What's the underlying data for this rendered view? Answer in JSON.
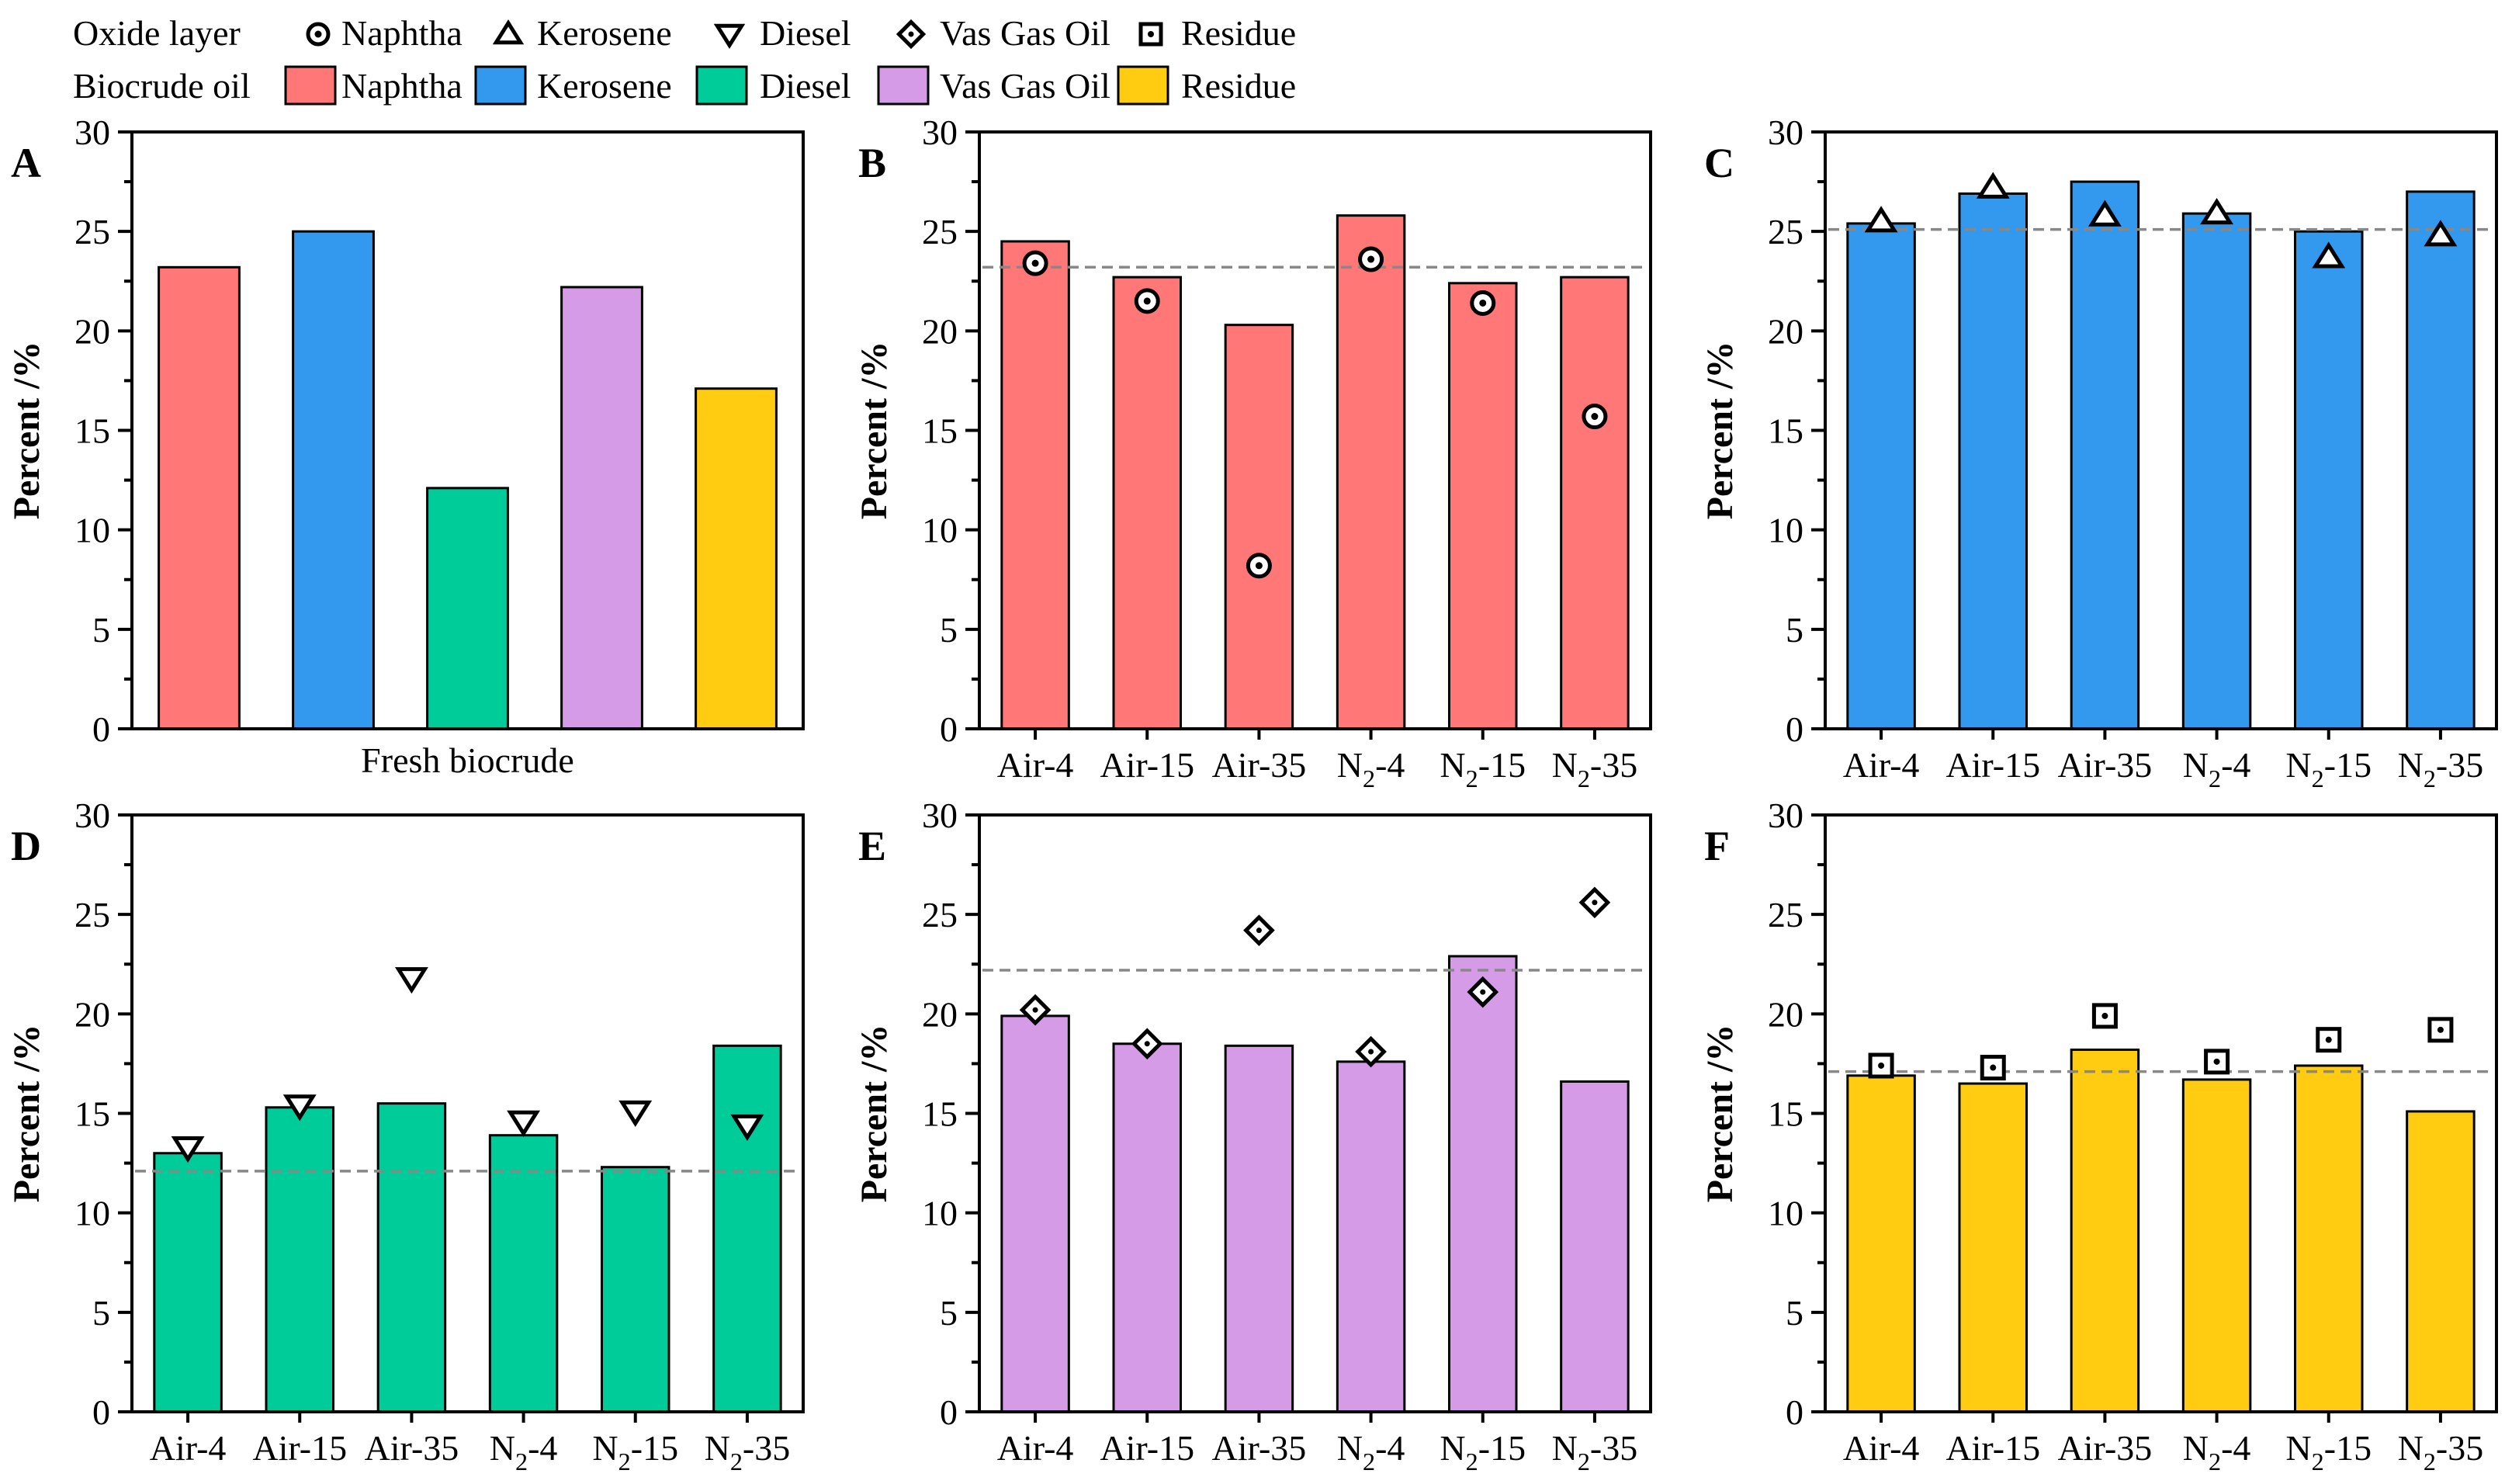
{
  "legend": {
    "row1_label": "Oxide layer",
    "row2_label": "Biocrude oil",
    "items": [
      {
        "name": "Naphtha",
        "marker": "circle-dot",
        "color": "#FF7777"
      },
      {
        "name": "Kerosene",
        "marker": "triangle-up",
        "color": "#3399EE"
      },
      {
        "name": "Diesel",
        "marker": "triangle-down",
        "color": "#00CC99"
      },
      {
        "name": "Vas Gas Oil",
        "marker": "diamond",
        "color": "#D59BE6"
      },
      {
        "name": "Residue",
        "marker": "square-dot",
        "color": "#FFCC11"
      }
    ]
  },
  "chart_data": [
    {
      "panel": "A",
      "type": "bar",
      "ylabel": "Percent /%",
      "xlabel": "Fresh biocrude",
      "ylim": [
        0,
        30
      ],
      "yticks": [
        "0",
        "5",
        "10",
        "15",
        "20",
        "25",
        "30"
      ],
      "categories": [
        "Naphtha",
        "Kerosene",
        "Diesel",
        "Vas Gas Oil",
        "Residue"
      ],
      "values": [
        23.2,
        25.0,
        12.1,
        22.2,
        17.1
      ],
      "colors": [
        "#FF7777",
        "#3399EE",
        "#00CC99",
        "#D59BE6",
        "#FFCC11"
      ]
    },
    {
      "panel": "B",
      "type": "bar",
      "ylabel": "Percent /%",
      "series_name": "Naphtha",
      "ylim": [
        0,
        30
      ],
      "yticks": [
        "0",
        "5",
        "10",
        "15",
        "20",
        "25",
        "30"
      ],
      "categories": [
        "Air-4",
        "Air-15",
        "Air-35",
        "N2-4",
        "N2-15",
        "N2-35"
      ],
      "values": [
        24.5,
        22.7,
        20.3,
        25.8,
        22.4,
        22.7
      ],
      "marker_values": [
        23.4,
        21.5,
        8.2,
        23.6,
        21.4,
        15.7
      ],
      "reference_line": 23.2,
      "marker": "circle-dot",
      "color": "#FF7777"
    },
    {
      "panel": "C",
      "type": "bar",
      "ylabel": "Percent /%",
      "series_name": "Kerosene",
      "ylim": [
        0,
        30
      ],
      "yticks": [
        "0",
        "5",
        "10",
        "15",
        "20",
        "25",
        "30"
      ],
      "categories": [
        "Air-4",
        "Air-15",
        "Air-35",
        "N2-4",
        "N2-15",
        "N2-35"
      ],
      "values": [
        25.4,
        26.9,
        27.5,
        25.9,
        25.0,
        27.0
      ],
      "marker_values": [
        25.5,
        27.2,
        25.8,
        25.9,
        23.7,
        24.8
      ],
      "reference_line": 25.1,
      "marker": "triangle-up",
      "color": "#3399EE"
    },
    {
      "panel": "D",
      "type": "bar",
      "ylabel": "Percent /%",
      "series_name": "Diesel",
      "ylim": [
        0,
        30
      ],
      "yticks": [
        "0",
        "5",
        "10",
        "15",
        "20",
        "25",
        "30"
      ],
      "categories": [
        "Air-4",
        "Air-15",
        "Air-35",
        "N2-4",
        "N2-15",
        "N2-35"
      ],
      "values": [
        13.0,
        15.3,
        15.5,
        13.9,
        12.3,
        18.4
      ],
      "marker_values": [
        13.3,
        15.4,
        21.8,
        14.6,
        15.1,
        14.4
      ],
      "reference_line": 12.1,
      "marker": "triangle-down",
      "color": "#00CC99"
    },
    {
      "panel": "E",
      "type": "bar",
      "ylabel": "Percent /%",
      "series_name": "Vas Gas Oil",
      "ylim": [
        0,
        30
      ],
      "yticks": [
        "0",
        "5",
        "10",
        "15",
        "20",
        "25",
        "30"
      ],
      "categories": [
        "Air-4",
        "Air-15",
        "Air-35",
        "N2-4",
        "N2-15",
        "N2-35"
      ],
      "values": [
        19.9,
        18.5,
        18.4,
        17.6,
        22.9,
        16.6
      ],
      "marker_values": [
        20.2,
        18.5,
        24.2,
        18.1,
        21.1,
        25.6
      ],
      "reference_line": 22.2,
      "marker": "diamond",
      "color": "#D59BE6"
    },
    {
      "panel": "F",
      "type": "bar",
      "ylabel": "Percent /%",
      "series_name": "Residue",
      "ylim": [
        0,
        30
      ],
      "yticks": [
        "0",
        "5",
        "10",
        "15",
        "20",
        "25",
        "30"
      ],
      "categories": [
        "Air-4",
        "Air-15",
        "Air-35",
        "N2-4",
        "N2-15",
        "N2-35"
      ],
      "values": [
        16.9,
        16.5,
        18.2,
        16.7,
        17.4,
        15.1
      ],
      "marker_values": [
        17.4,
        17.3,
        19.9,
        17.6,
        18.7,
        19.2
      ],
      "reference_line": 17.1,
      "marker": "square-dot",
      "color": "#FFCC11"
    }
  ]
}
